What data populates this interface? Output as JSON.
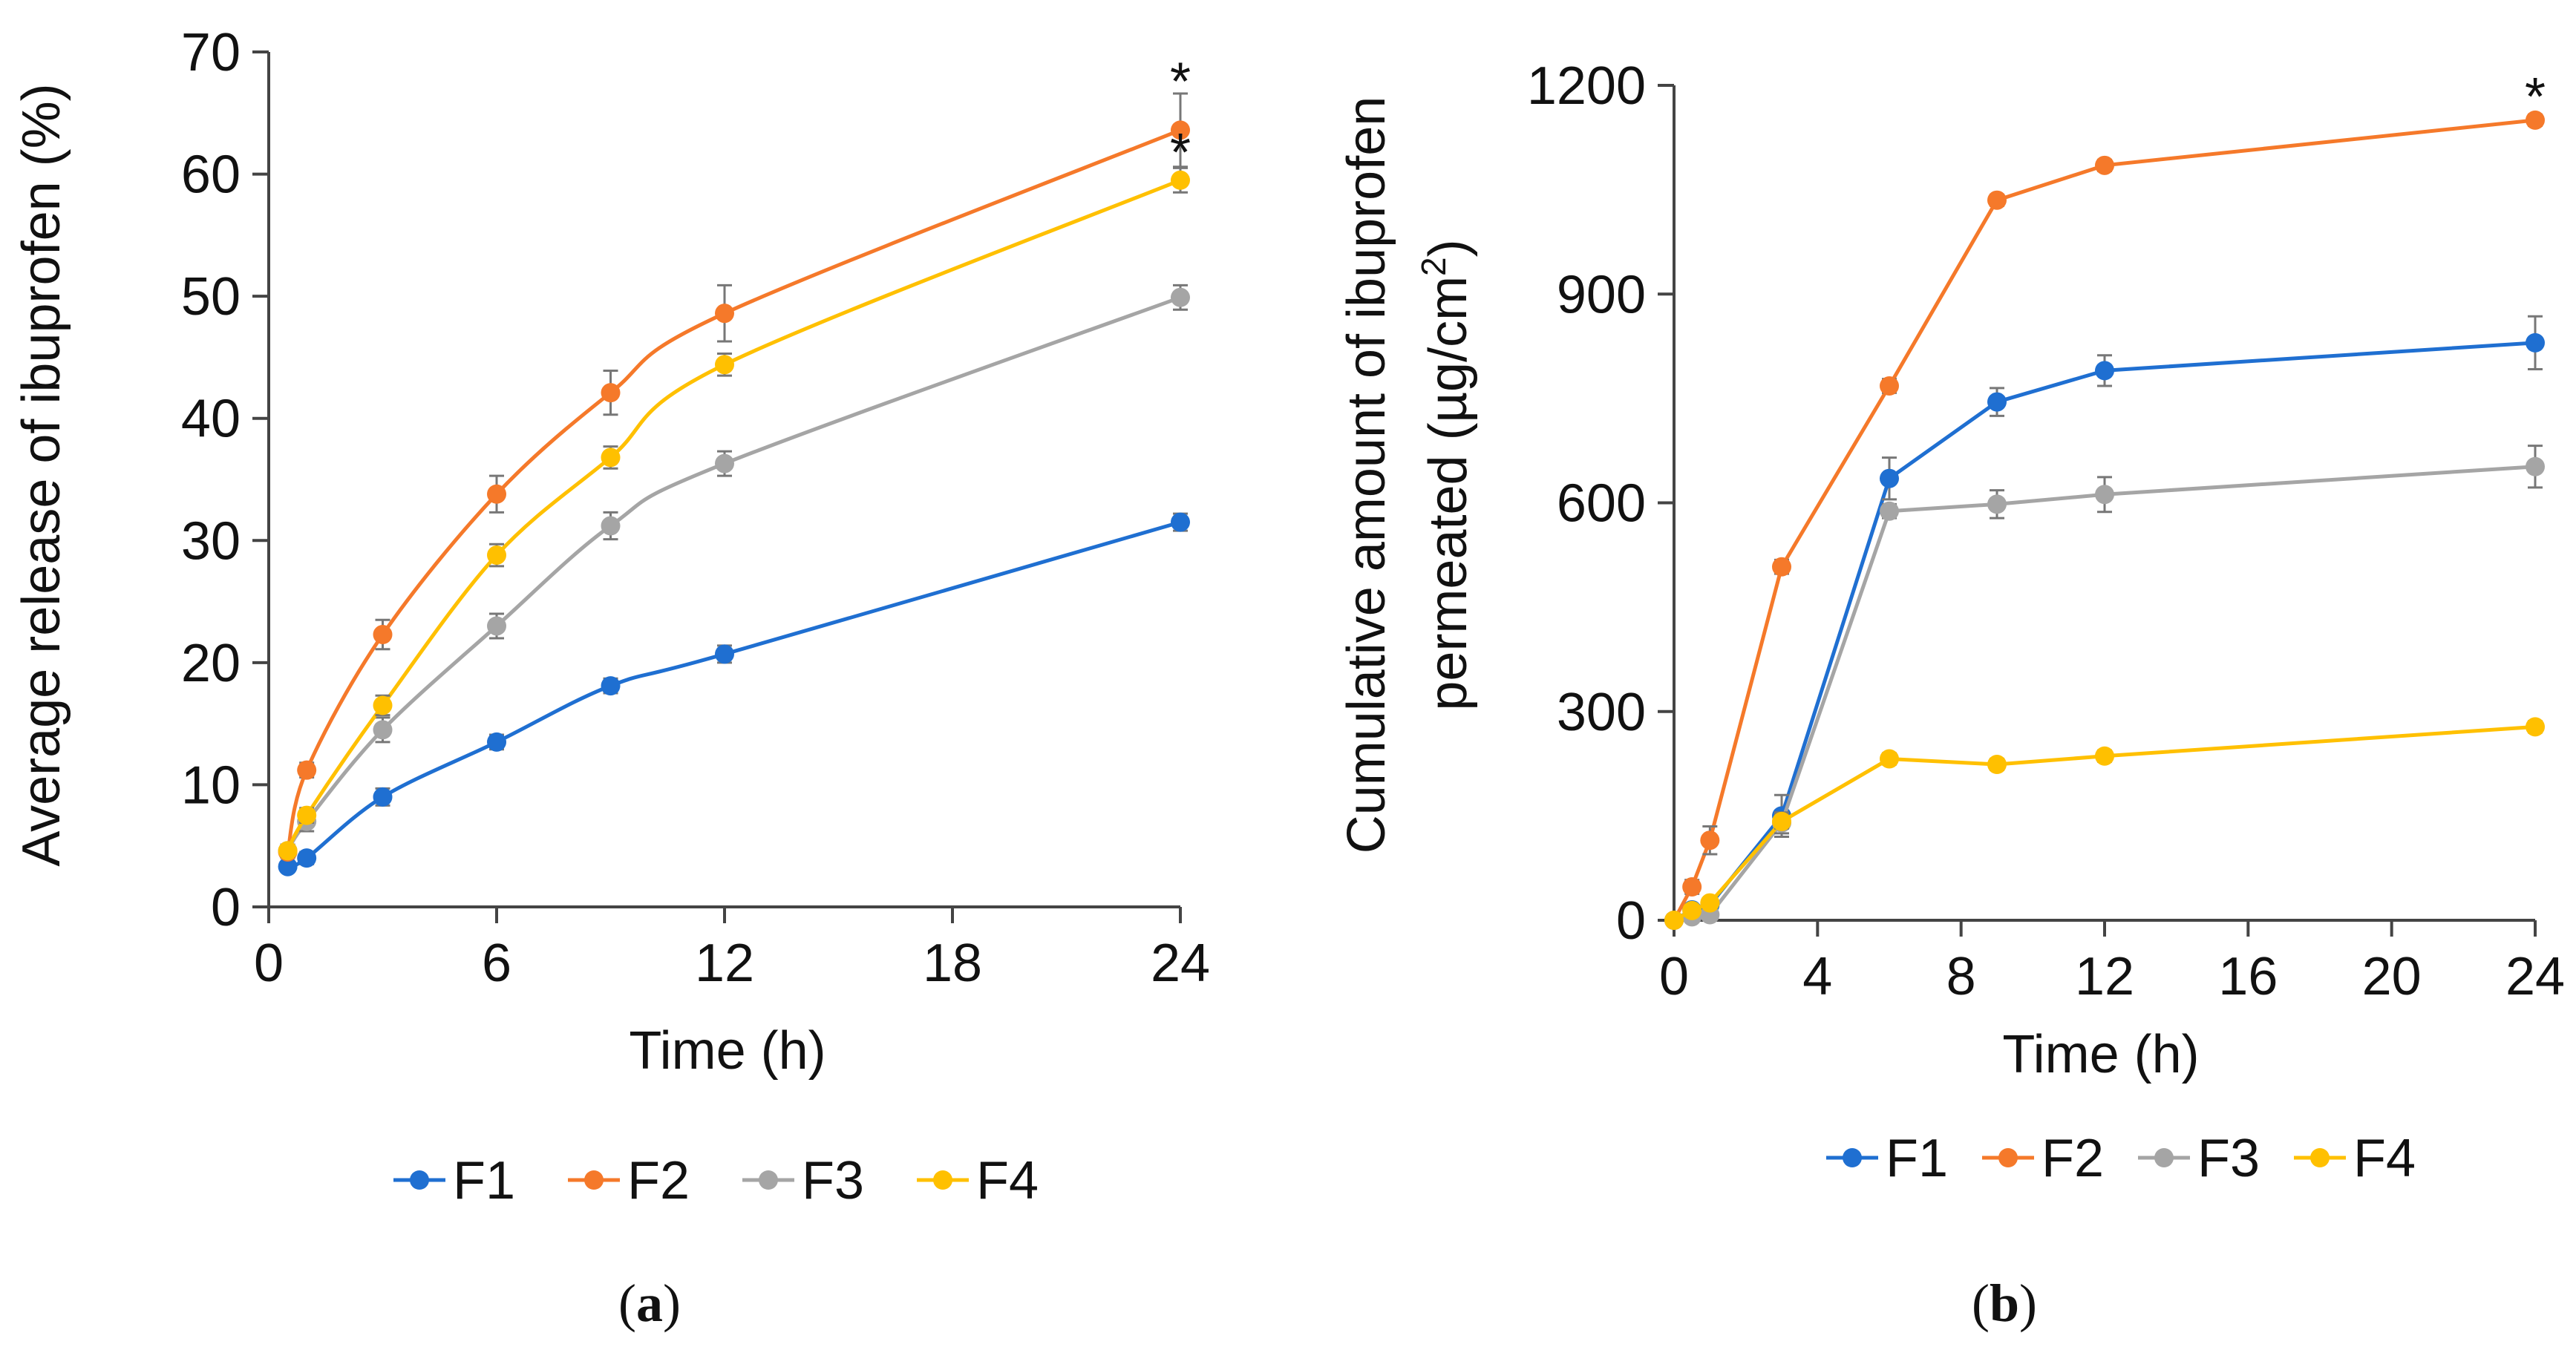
{
  "colors": {
    "F1": "#1f6fd1",
    "F2": "#f5792a",
    "F3": "#a5a5a5",
    "F4": "#ffc000",
    "axis": "#444444",
    "errorbar": "#777777"
  },
  "chart_data": [
    {
      "type": "line",
      "panel_label": "(a)",
      "caption_open": "(",
      "caption_letter": "a",
      "caption_close": ")",
      "ylabel": "Average release of ibuprofen (%)",
      "xlabel": "Time (h)",
      "xlim": [
        0,
        24
      ],
      "ylim": [
        0,
        70
      ],
      "xticks": [
        0,
        6,
        12,
        18,
        24
      ],
      "yticks": [
        0,
        10,
        20,
        30,
        40,
        50,
        60,
        70
      ],
      "x": [
        0.5,
        1,
        3,
        6,
        9,
        12,
        24
      ],
      "smooth": true,
      "legend": "bottom",
      "grid": false,
      "series": [
        {
          "name": "F1",
          "values": [
            3.3,
            4.0,
            9.0,
            13.5,
            18.1,
            20.7,
            31.5
          ],
          "errors": [
            0.4,
            0.5,
            0.7,
            0.6,
            0.6,
            0.7,
            0.7
          ]
        },
        {
          "name": "F2",
          "values": [
            4.5,
            11.2,
            22.3,
            33.8,
            42.1,
            48.6,
            63.6
          ],
          "errors": [
            0.5,
            0.6,
            1.2,
            1.5,
            1.8,
            2.3,
            3.0
          ]
        },
        {
          "name": "F3",
          "values": [
            4.6,
            7.0,
            14.5,
            23.0,
            31.2,
            36.3,
            49.9
          ],
          "errors": [
            0.5,
            0.8,
            1.0,
            1.0,
            1.1,
            1.0,
            1.0
          ]
        },
        {
          "name": "F4",
          "values": [
            4.6,
            7.5,
            16.5,
            28.8,
            36.8,
            44.4,
            59.5
          ],
          "errors": [
            0.5,
            0.6,
            0.8,
            0.9,
            0.9,
            0.9,
            1.0
          ]
        }
      ],
      "annotations": [
        {
          "text": "*",
          "x": 24,
          "y": 68.5
        },
        {
          "text": "*",
          "x": 24,
          "y": 62.7
        }
      ]
    },
    {
      "type": "line",
      "panel_label": "(b)",
      "caption_open": "(",
      "caption_letter": "b",
      "caption_close": ")",
      "ylabel_line1": "Cumulative amount of ibuprofen",
      "ylabel_line2": "permeated (µg/cm",
      "ylabel_sup": "2",
      "ylabel_close": ")",
      "xlabel": "Time (h)",
      "xlim": [
        0,
        24
      ],
      "ylim": [
        0,
        1200
      ],
      "xticks": [
        0,
        4,
        8,
        12,
        16,
        20,
        24
      ],
      "yticks": [
        0,
        300,
        600,
        900,
        1200
      ],
      "x": [
        0,
        0.5,
        1,
        3,
        6,
        9,
        12,
        24
      ],
      "smooth": false,
      "legend": "bottom",
      "grid": false,
      "series": [
        {
          "name": "F1",
          "values": [
            0,
            15,
            22,
            150,
            635,
            745,
            790,
            830
          ],
          "errors": [
            0,
            5,
            8,
            30,
            30,
            20,
            22,
            38
          ]
        },
        {
          "name": "F2",
          "values": [
            0,
            48,
            115,
            508,
            768,
            1035,
            1085,
            1150
          ],
          "errors": [
            0,
            10,
            20,
            10,
            10,
            8,
            8,
            8
          ]
        },
        {
          "name": "F3",
          "values": [
            0,
            5,
            8,
            140,
            588,
            598,
            612,
            652
          ],
          "errors": [
            0,
            3,
            5,
            15,
            10,
            20,
            25,
            30
          ]
        },
        {
          "name": "F4",
          "values": [
            0,
            14,
            25,
            142,
            232,
            224,
            236,
            278
          ],
          "errors": [
            0,
            4,
            6,
            10,
            8,
            8,
            8,
            8
          ]
        }
      ],
      "annotations": [
        {
          "text": "*",
          "x": 24,
          "y": 1200
        }
      ]
    }
  ]
}
